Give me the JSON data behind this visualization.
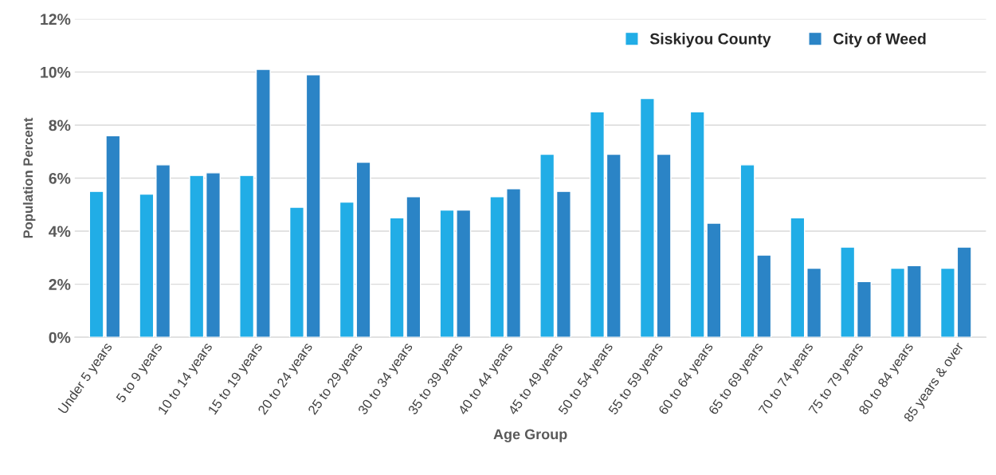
{
  "chart_data": {
    "type": "bar",
    "xlabel": "Age Group",
    "ylabel": "Population Percent",
    "categories": [
      "Under 5 years",
      "5 to 9 years",
      "10 to 14 years",
      "15 to 19 years",
      "20 to 24 years",
      "25 to 29 years",
      "30 to 34 years",
      "35 to 39 years",
      "40 to 44 years",
      "45 to 49 years",
      "50 to 54 years",
      "55 to 59 years",
      "60 to 64 years",
      "65 to 69 years",
      "70 to 74 years",
      "75 to 79 years",
      "80 to 84 years",
      "85 years & over"
    ],
    "series": [
      {
        "name": "Siskiyou County",
        "color": "#21ade6",
        "values": [
          5.5,
          5.4,
          6.1,
          6.1,
          4.9,
          5.1,
          4.5,
          4.8,
          5.3,
          6.9,
          8.5,
          9.0,
          8.5,
          6.5,
          4.5,
          3.4,
          2.6,
          2.6
        ]
      },
      {
        "name": "City of Weed",
        "color": "#2b84c6",
        "values": [
          7.6,
          6.5,
          6.2,
          10.1,
          9.9,
          6.6,
          5.3,
          4.8,
          5.6,
          5.5,
          6.9,
          6.9,
          4.3,
          3.1,
          2.6,
          2.1,
          2.7,
          3.4
        ]
      }
    ],
    "ylim": [
      0,
      12
    ],
    "yticks": [
      {
        "value": 0,
        "label": "0%"
      },
      {
        "value": 2,
        "label": "2%"
      },
      {
        "value": 4,
        "label": "4%"
      },
      {
        "value": 6,
        "label": "6%"
      },
      {
        "value": 8,
        "label": "8%"
      },
      {
        "value": 10,
        "label": "10%"
      },
      {
        "value": 12,
        "label": "12%"
      }
    ],
    "grid": "y",
    "legend": "top right"
  }
}
